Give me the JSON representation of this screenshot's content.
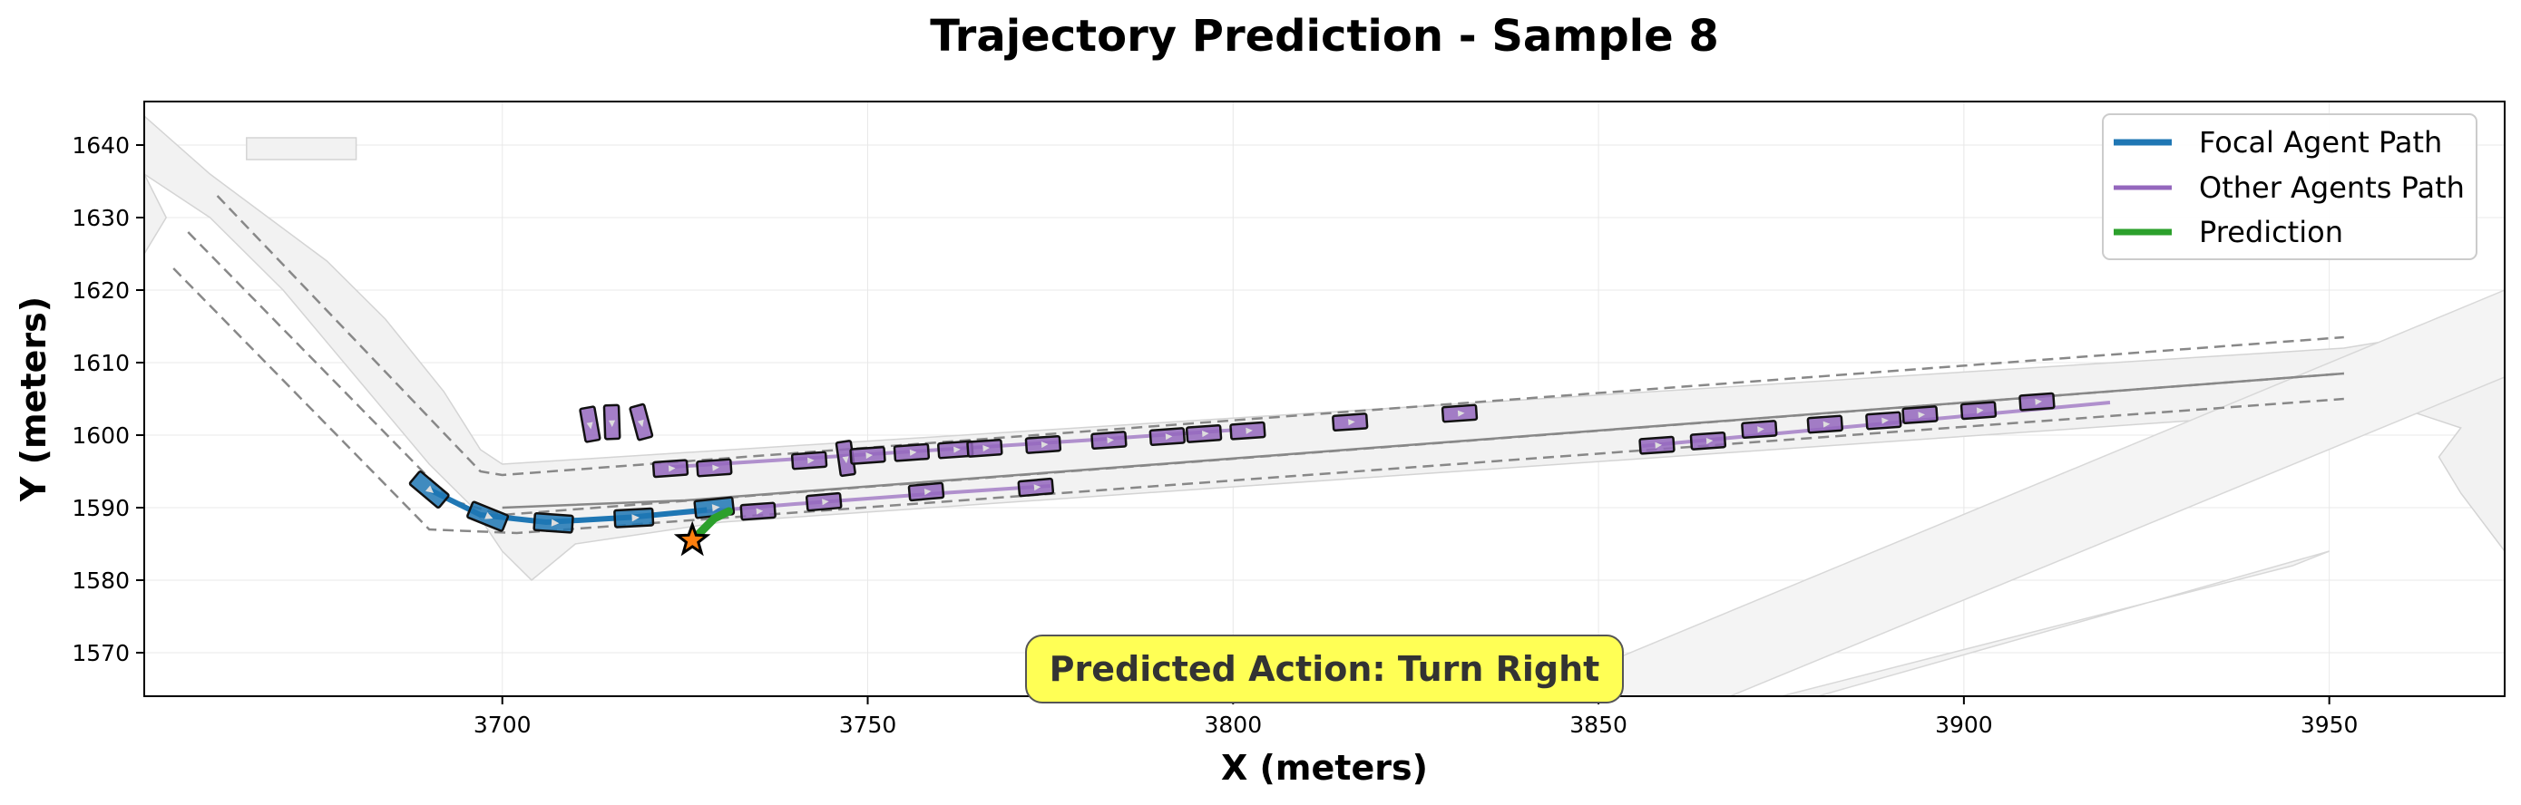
{
  "chart_data": {
    "type": "scatter",
    "title": "Trajectory Prediction - Sample 8",
    "xlabel": "X (meters)",
    "ylabel": "Y (meters)",
    "xlim": [
      3651,
      3974
    ],
    "ylim": [
      1564,
      1646
    ],
    "xticks": [
      3700,
      3750,
      3800,
      3850,
      3900,
      3950
    ],
    "yticks": [
      1570,
      1580,
      1590,
      1600,
      1610,
      1620,
      1630,
      1640
    ],
    "grid": true,
    "legend_placement": "top-right",
    "legend": [
      {
        "label": "Focal Agent Path",
        "color": "#1f77b4"
      },
      {
        "label": "Other Agents Path",
        "color": "#9467bd"
      },
      {
        "label": "Prediction",
        "color": "#2ca02c"
      }
    ],
    "annotation": "Predicted Action: Turn Right",
    "annotation_color": "#ffff55",
    "colors": {
      "focal": "#1f77b4",
      "other": "#9467bd",
      "prediction": "#2ca02c",
      "road": "#f2f2f2",
      "goal_star": "#ff7f0e"
    },
    "road_polygons": [
      [
        [
          3651,
          1644
        ],
        [
          3660,
          1636
        ],
        [
          3668,
          1630
        ],
        [
          3676,
          1624
        ],
        [
          3684,
          1616
        ],
        [
          3692,
          1606
        ],
        [
          3697,
          1598
        ],
        [
          3700,
          1596
        ],
        [
          3952,
          1612
        ],
        [
          3958,
          1613
        ],
        [
          3960,
          1612
        ],
        [
          3968,
          1614
        ],
        [
          3974,
          1618
        ],
        [
          3974,
          1584
        ],
        [
          3968,
          1592
        ],
        [
          3965,
          1597
        ],
        [
          3968,
          1601
        ],
        [
          3962,
          1603
        ],
        [
          3960,
          1604
        ],
        [
          3730,
          1588
        ],
        [
          3710,
          1585
        ],
        [
          3704,
          1580
        ],
        [
          3700,
          1584
        ],
        [
          3696,
          1590
        ],
        [
          3690,
          1596
        ],
        [
          3680,
          1608
        ],
        [
          3670,
          1620
        ],
        [
          3660,
          1630
        ],
        [
          3651,
          1636
        ]
      ],
      [
        [
          3651,
          1644
        ],
        [
          3651,
          1636
        ],
        [
          3654,
          1630
        ],
        [
          3651,
          1625
        ]
      ],
      [
        [
          3665,
          1638
        ],
        [
          3680,
          1638
        ],
        [
          3680,
          1641
        ],
        [
          3665,
          1641
        ]
      ]
    ],
    "road_diagonals": [
      [
        [
          3840,
          1564
        ],
        [
          3974,
          1620
        ],
        [
          3974,
          1608
        ],
        [
          3868,
          1564
        ]
      ],
      [
        [
          3880,
          1564
        ],
        [
          3950,
          1584
        ],
        [
          3945,
          1582
        ],
        [
          3875,
          1564
        ]
      ]
    ],
    "lane_dashed": [
      [
        [
          3661,
          1633
        ],
        [
          3697,
          1595
        ],
        [
          3700,
          1594.5
        ],
        [
          3952,
          1613.5
        ]
      ],
      [
        [
          3657,
          1628
        ],
        [
          3693,
          1591
        ],
        [
          3700,
          1589
        ],
        [
          3952,
          1608.5
        ]
      ],
      [
        [
          3655,
          1623
        ],
        [
          3690,
          1587
        ],
        [
          3702,
          1586.5
        ],
        [
          3952,
          1605
        ]
      ]
    ],
    "lane_center": [
      [
        3700,
        1590
      ],
      [
        3725,
        1591
      ],
      [
        3952,
        1608.5
      ]
    ],
    "focal_path": [
      [
        3690,
        1592.5
      ],
      [
        3697,
        1589
      ],
      [
        3706,
        1588
      ],
      [
        3718,
        1588.7
      ],
      [
        3728,
        1589.7
      ]
    ],
    "focal_boxes": [
      {
        "x": 3690,
        "y": 1592.5,
        "angle": -40
      },
      {
        "x": 3698,
        "y": 1588.8,
        "angle": -22
      },
      {
        "x": 3707,
        "y": 1587.9,
        "angle": -4
      },
      {
        "x": 3718,
        "y": 1588.6,
        "angle": 3
      },
      {
        "x": 3729,
        "y": 1590.0,
        "angle": 6
      }
    ],
    "other_paths": [
      [
        [
          3722,
          1589
        ],
        [
          3740,
          1590.5
        ],
        [
          3760,
          1592
        ],
        [
          3775,
          1593
        ]
      ],
      [
        [
          3723,
          1595.6
        ],
        [
          3780,
          1599.3
        ],
        [
          3800,
          1600.7
        ]
      ],
      [
        [
          3856,
          1598.5
        ],
        [
          3920,
          1604.5
        ]
      ]
    ],
    "other_boxes": [
      {
        "x": 3712,
        "y": 1601.5,
        "angle": -80
      },
      {
        "x": 3715,
        "y": 1601.8,
        "angle": -88
      },
      {
        "x": 3719,
        "y": 1601.8,
        "angle": -75
      },
      {
        "x": 3723,
        "y": 1595.4,
        "angle": 4
      },
      {
        "x": 3729,
        "y": 1595.5,
        "angle": 4
      },
      {
        "x": 3735,
        "y": 1589.5,
        "angle": 4
      },
      {
        "x": 3744,
        "y": 1590.8,
        "angle": 5
      },
      {
        "x": 3758,
        "y": 1592.2,
        "angle": 5
      },
      {
        "x": 3773,
        "y": 1592.8,
        "angle": 5
      },
      {
        "x": 3742,
        "y": 1596.5,
        "angle": 4
      },
      {
        "x": 3747,
        "y": 1596.8,
        "angle": -82
      },
      {
        "x": 3750,
        "y": 1597.2,
        "angle": 4
      },
      {
        "x": 3756,
        "y": 1597.6,
        "angle": 4
      },
      {
        "x": 3762,
        "y": 1598.0,
        "angle": 4
      },
      {
        "x": 3766,
        "y": 1598.2,
        "angle": 4
      },
      {
        "x": 3774,
        "y": 1598.7,
        "angle": 4
      },
      {
        "x": 3783,
        "y": 1599.3,
        "angle": 4
      },
      {
        "x": 3791,
        "y": 1599.8,
        "angle": 4
      },
      {
        "x": 3796,
        "y": 1600.2,
        "angle": 4
      },
      {
        "x": 3802,
        "y": 1600.6,
        "angle": 4
      },
      {
        "x": 3816,
        "y": 1601.8,
        "angle": 4
      },
      {
        "x": 3831,
        "y": 1603.0,
        "angle": 4
      },
      {
        "x": 3858,
        "y": 1598.6,
        "angle": 4
      },
      {
        "x": 3865,
        "y": 1599.2,
        "angle": 4
      },
      {
        "x": 3872,
        "y": 1600.8,
        "angle": 4
      },
      {
        "x": 3881,
        "y": 1601.5,
        "angle": 4
      },
      {
        "x": 3889,
        "y": 1602.0,
        "angle": 4
      },
      {
        "x": 3894,
        "y": 1602.8,
        "angle": 4
      },
      {
        "x": 3902,
        "y": 1603.4,
        "angle": 4
      },
      {
        "x": 3910,
        "y": 1604.6,
        "angle": 4
      }
    ],
    "prediction": [
      [
        3726,
        1585.5
      ],
      [
        3727.5,
        1587
      ],
      [
        3729,
        1588.5
      ],
      [
        3731,
        1589.5
      ]
    ],
    "goal_star": [
      3726,
      1585.5
    ]
  }
}
